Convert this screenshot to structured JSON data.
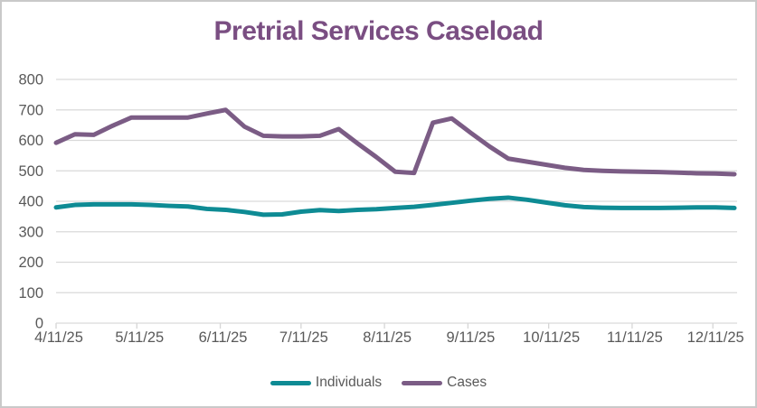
{
  "styles": {
    "frame_border_color": "#C9C9C9",
    "background_color": "#FFFFFF",
    "title_color": "#7A4E82",
    "axis_text_color": "#595959",
    "gridline_color": "#D9D9D9",
    "axis_line_color": "#D6D6D6"
  },
  "chart_data": {
    "type": "line",
    "title": "Pretrial Services Caseload",
    "grid": "horizontal",
    "legend_position": "bottom-center",
    "y_axis": {
      "min": 0,
      "max": 800,
      "step": 100,
      "tick_labels": [
        "0",
        "100",
        "200",
        "300",
        "400",
        "500",
        "600",
        "700",
        "800"
      ]
    },
    "x_axis": {
      "tick_labels": [
        "4/11/25",
        "5/11/25",
        "6/11/25",
        "7/11/25",
        "8/11/25",
        "9/11/25",
        "10/11/25",
        "11/11/25",
        "12/11/25"
      ],
      "tick_days": [
        0,
        30,
        61,
        91,
        122,
        153,
        183,
        214,
        244
      ],
      "domain_days": [
        0,
        253
      ]
    },
    "x_days": [
      0,
      7,
      14,
      21,
      28,
      35,
      42,
      49,
      56,
      63,
      70,
      77,
      84,
      91,
      98,
      105,
      112,
      119,
      126,
      133,
      140,
      147,
      154,
      161,
      168,
      175,
      182,
      189,
      196,
      203,
      210,
      217,
      224,
      231,
      238,
      245,
      252
    ],
    "series": [
      {
        "name": "Individuals",
        "color": "#0E8B94",
        "values": [
          380,
          388,
          390,
          390,
          390,
          388,
          385,
          383,
          375,
          372,
          365,
          356,
          357,
          366,
          371,
          368,
          372,
          374,
          378,
          382,
          388,
          395,
          402,
          408,
          412,
          405,
          396,
          387,
          381,
          379,
          378,
          378,
          378,
          379,
          380,
          380,
          378
        ]
      },
      {
        "name": "Cases",
        "color": "#7B5C85",
        "values": [
          592,
          620,
          618,
          648,
          675,
          675,
          675,
          675,
          688,
          700,
          645,
          615,
          613,
          613,
          615,
          637,
          590,
          545,
          497,
          493,
          658,
          672,
          625,
          580,
          540,
          530,
          520,
          510,
          503,
          500,
          498,
          497,
          496,
          494,
          492,
          491,
          489
        ]
      }
    ]
  }
}
